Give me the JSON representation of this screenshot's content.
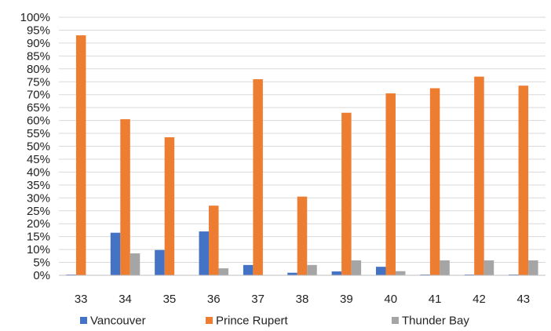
{
  "chart_data": {
    "type": "bar",
    "categories": [
      "33",
      "34",
      "35",
      "36",
      "37",
      "38",
      "39",
      "40",
      "41",
      "42",
      "43"
    ],
    "series": [
      {
        "name": "Vancouver",
        "color": "#4472c4",
        "values": [
          0.3,
          16.5,
          9.8,
          17.0,
          4.0,
          1.0,
          1.5,
          3.3,
          0.3,
          0.3,
          0.3
        ]
      },
      {
        "name": "Prince Rupert",
        "color": "#ed7d31",
        "values": [
          93.0,
          60.5,
          53.5,
          27.0,
          76.0,
          30.5,
          63.0,
          70.5,
          72.5,
          77.0,
          73.5
        ]
      },
      {
        "name": "Thunder Bay",
        "color": "#a5a5a5",
        "values": [
          0,
          8.5,
          0,
          2.7,
          0,
          4.0,
          5.8,
          1.6,
          5.8,
          5.8,
          5.8
        ]
      }
    ],
    "ylim": [
      0,
      100
    ],
    "ytick_step": 5,
    "ytick_format": "percent",
    "grid": true,
    "legend_position": "bottom"
  }
}
